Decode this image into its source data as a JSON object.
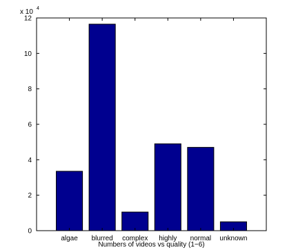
{
  "chart_data": {
    "type": "bar",
    "categories": [
      "algae",
      "blurred",
      "complex",
      "highly",
      "normal",
      "unknown"
    ],
    "values": [
      33500,
      116500,
      10500,
      49000,
      47000,
      5000
    ],
    "yticks": [
      0,
      2,
      4,
      6,
      8,
      10,
      12
    ],
    "ylim": [
      0,
      120000
    ],
    "y_multiplier_base": "x 10",
    "y_multiplier_exponent": "4",
    "xlabel": "Numbers of videos vs quality (1−6)",
    "ylabel": "",
    "title": "",
    "bar_color": "#00008f",
    "grid": false,
    "legend": "none"
  }
}
